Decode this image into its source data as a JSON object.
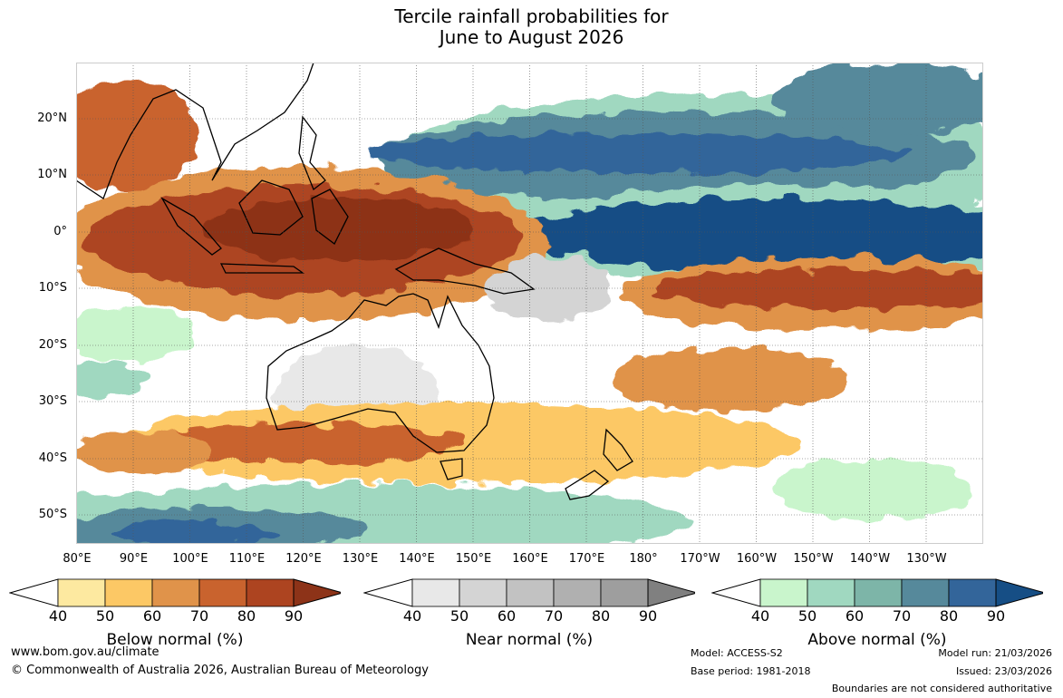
{
  "title": {
    "line1": "Tercile rainfall probabilities for",
    "line2": "June to August 2026"
  },
  "map": {
    "lat_labels": [
      "20°N",
      "10°N",
      "0°",
      "10°S",
      "20°S",
      "30°S",
      "40°S",
      "50°S"
    ],
    "lon_labels": [
      "80°E",
      "90°E",
      "100°E",
      "110°E",
      "120°E",
      "130°E",
      "140°E",
      "150°E",
      "160°E",
      "170°E",
      "180°",
      "170°W",
      "160°W",
      "150°W",
      "140°W",
      "130°W"
    ]
  },
  "legends": {
    "below": {
      "label": "Below normal (%)",
      "ticks": [
        "40",
        "50",
        "60",
        "70",
        "80",
        "90"
      ],
      "colors": [
        "#ffffff",
        "#fde9a0",
        "#fcc865",
        "#e0934a",
        "#c9632e",
        "#ad4420",
        "#8d3318"
      ]
    },
    "near": {
      "label": "Near normal (%)",
      "ticks": [
        "40",
        "50",
        "60",
        "70",
        "80",
        "90"
      ],
      "colors": [
        "#ffffff",
        "#e8e8e8",
        "#d4d4d4",
        "#c2c2c2",
        "#b0b0b0",
        "#9e9e9e",
        "#808080"
      ]
    },
    "above": {
      "label": "Above normal (%)",
      "ticks": [
        "40",
        "50",
        "60",
        "70",
        "80",
        "90"
      ],
      "colors": [
        "#ffffff",
        "#c9f5cc",
        "#a0d8c0",
        "#7db5a8",
        "#56899b",
        "#33659a",
        "#164e85"
      ]
    }
  },
  "footer": {
    "website": "www.bom.gov.au/climate",
    "copyright": "© Commonwealth of Australia 2026, Australian Bureau of Meteorology",
    "model": "Model: ACCESS-S2",
    "base_period": "Base period: 1981-2018",
    "model_run": "Model run: 21/03/2026",
    "issued": "Issued: 23/03/2026",
    "disclaimer": "Boundaries are not considered authoritative"
  }
}
